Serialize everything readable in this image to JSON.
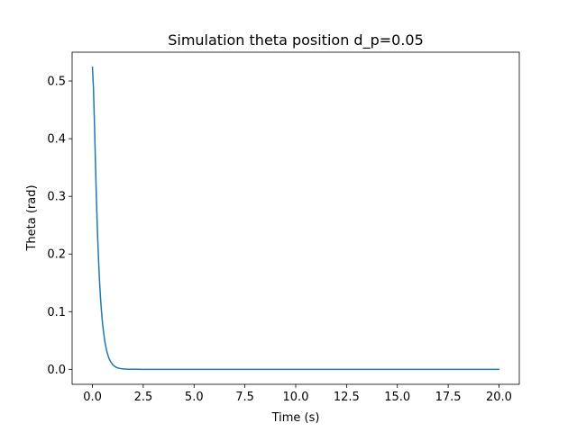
{
  "chart_data": {
    "type": "line",
    "title": "Simulation theta position d_p=0.05",
    "xlabel": "Time (s)",
    "ylabel": "Theta (rad)",
    "xlim": [
      -1.0,
      21.0
    ],
    "ylim": [
      -0.026,
      0.55
    ],
    "xticks": [
      0.0,
      2.5,
      5.0,
      7.5,
      10.0,
      12.5,
      15.0,
      17.5,
      20.0
    ],
    "xtick_labels": [
      "0.0",
      "2.5",
      "5.0",
      "7.5",
      "10.0",
      "12.5",
      "15.0",
      "17.5",
      "20.0"
    ],
    "yticks": [
      0.0,
      0.1,
      0.2,
      0.3,
      0.4,
      0.5
    ],
    "ytick_labels": [
      "0.0",
      "0.1",
      "0.2",
      "0.3",
      "0.4",
      "0.5"
    ],
    "grid": false,
    "line_color": "#1f77b4",
    "series": [
      {
        "x": [
          0.0,
          0.05,
          0.1,
          0.15,
          0.2,
          0.25,
          0.3,
          0.35,
          0.4,
          0.45,
          0.5,
          0.6,
          0.7,
          0.8,
          0.9,
          1.0,
          1.1,
          1.2,
          1.3,
          1.4,
          1.5,
          1.75,
          2.0,
          2.5,
          3.0,
          4.0,
          5.0,
          7.5,
          10.0,
          12.5,
          15.0,
          17.5,
          20.0
        ],
        "y": [
          0.524,
          0.487,
          0.425,
          0.355,
          0.29,
          0.235,
          0.19,
          0.152,
          0.122,
          0.098,
          0.078,
          0.05,
          0.032,
          0.02,
          0.013,
          0.008,
          0.005,
          0.003,
          0.002,
          0.0012,
          0.0007,
          0.0002,
          0.0001,
          0.0,
          0.0,
          0.0,
          0.0,
          0.0,
          0.0,
          0.0,
          0.0,
          0.0,
          0.0
        ]
      }
    ]
  }
}
